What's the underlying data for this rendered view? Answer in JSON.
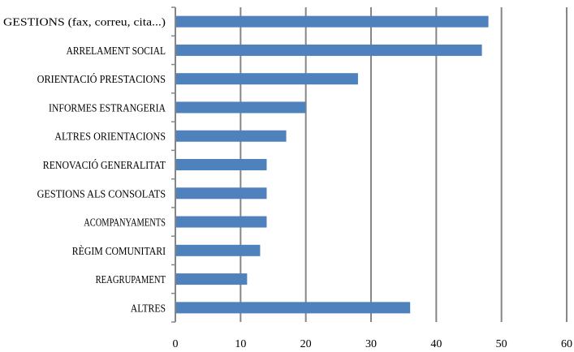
{
  "chart_data": {
    "type": "bar",
    "orientation": "horizontal",
    "categories": [
      "GESTIONS (fax, correu, cita...)",
      "ARRELAMENT SOCIAL",
      "ORIENTACIÓ PRESTACIONS",
      "INFORMES ESTRANGERIA",
      "ALTRES ORIENTACIONS",
      "RENOVACIÓ GENERALITAT",
      "GESTIONS ALS CONSOLATS",
      "ACOMPANYAMENTS",
      "RÈGIM COMUNITARI",
      "REAGRUPAMENT",
      "ALTRES"
    ],
    "values": [
      48,
      47,
      28,
      20,
      17,
      14,
      14,
      14,
      13,
      11,
      36
    ],
    "title": "",
    "xlabel": "",
    "ylabel": "",
    "xlim": [
      0,
      60
    ],
    "xticks": [
      0,
      10,
      20,
      30,
      40,
      50,
      60
    ],
    "grid": "vertical",
    "legend": "none",
    "bar_color": "#4f81bd",
    "grid_color": "#868686"
  }
}
